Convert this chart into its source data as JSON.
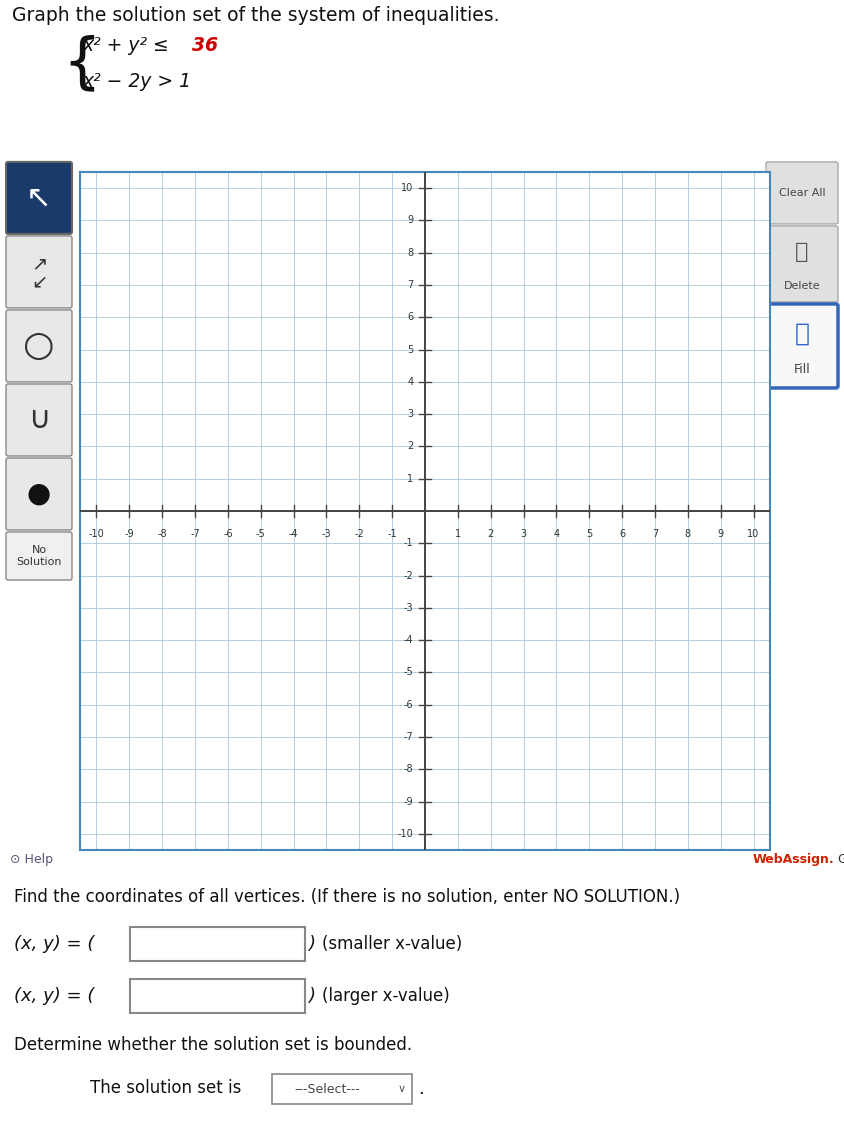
{
  "title_text": "Graph the solution set of the system of inequalities.",
  "ineq1_prefix": "x² + y² ≤ ",
  "ineq1_number": "36",
  "ineq1_color": "#cc0000",
  "ineq2_full": "x² − 2y > 1",
  "grid_color": "#aac8d8",
  "axis_color": "#555555",
  "bg_color": "#ffffff",
  "frame_bg": "#c8c8c8",
  "graph_bg": "#ffffff",
  "graph_border": "#4488bb",
  "xlim": [
    -10.5,
    10.5
  ],
  "ylim": [
    -10.5,
    10.5
  ],
  "bottom_text1": "Find the coordinates of all vertices. (If there is no solution, enter NO SOLUTION.)",
  "bottom_text2": "Determine whether the solution set is bounded.",
  "bottom_text3": "The solution set is",
  "webassign_red": "#cc2200",
  "sidebar_dark": "#1a3a6b",
  "btn_light": "#e8e8e8",
  "fill_border": "#3366bb"
}
